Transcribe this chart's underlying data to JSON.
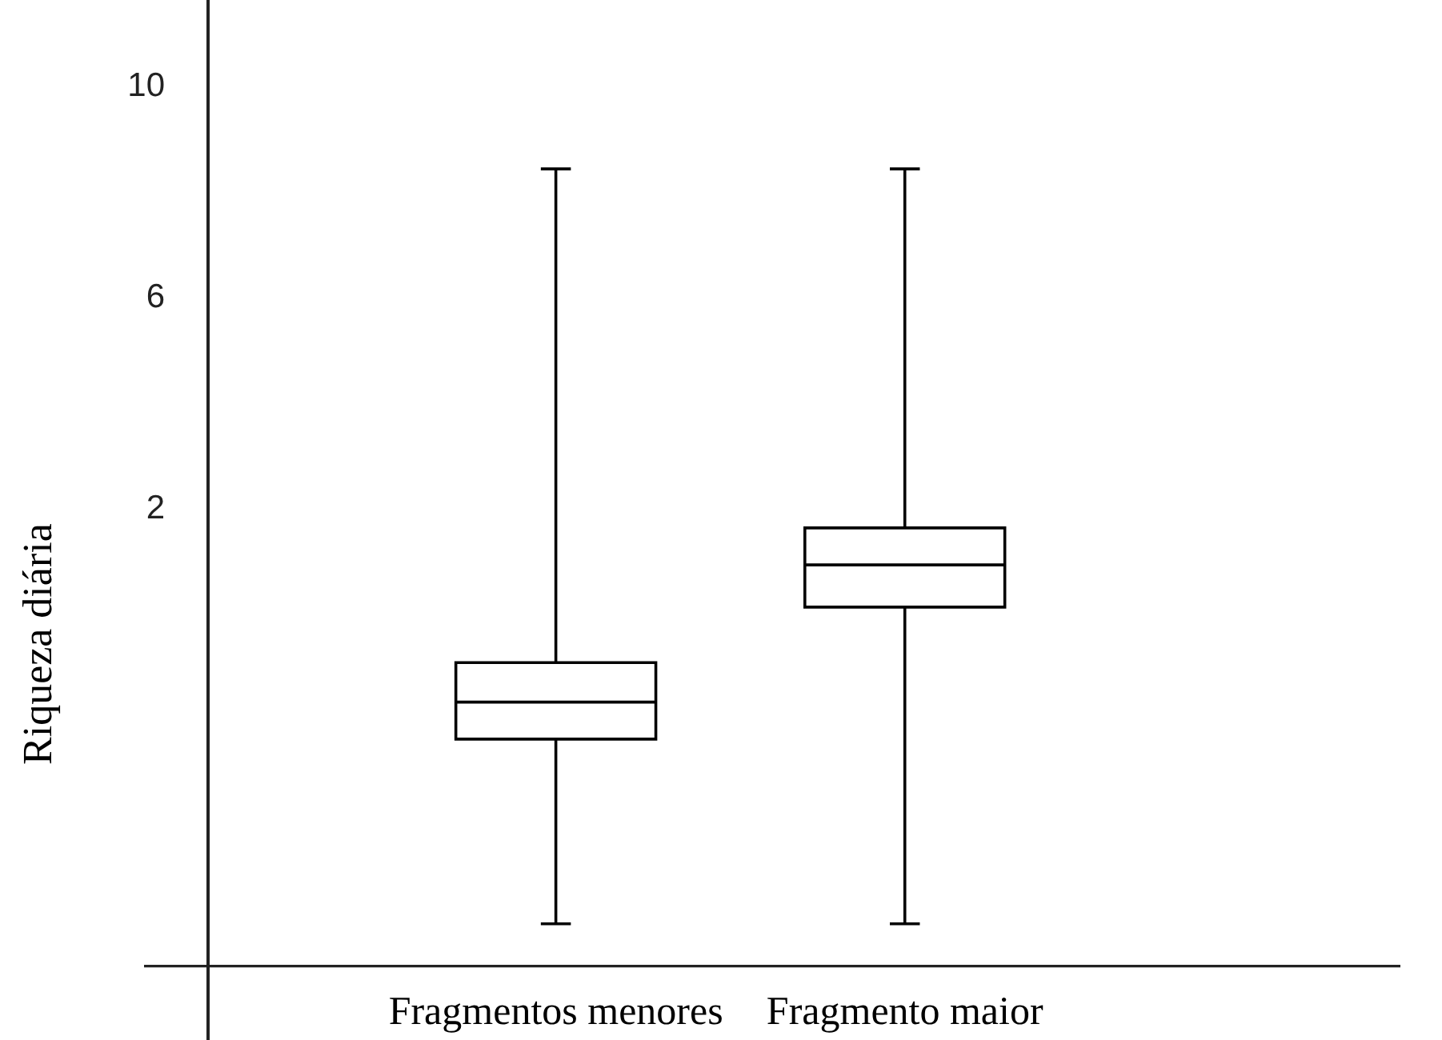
{
  "chart_data": {
    "type": "box",
    "ylabel": "Riqueza diária",
    "categories": [
      "Fragmentos menores",
      "Fragmento maior"
    ],
    "series": [
      {
        "color": "#000000",
        "boxes": [
          {
            "low": -5.9,
            "q1": -2.4,
            "median": -1.7,
            "q3": -0.95,
            "high": 8.4
          },
          {
            "low": -5.9,
            "q1": 0.1,
            "median": 0.9,
            "q3": 1.6,
            "high": 8.4
          }
        ]
      }
    ],
    "ref_lines": [
      {
        "axis": "y",
        "value": -6.7,
        "color": "#222222"
      }
    ],
    "ylim": [
      -8.1,
      11.6
    ],
    "yticks": [
      10,
      6,
      2
    ],
    "tick_labels": "y"
  }
}
